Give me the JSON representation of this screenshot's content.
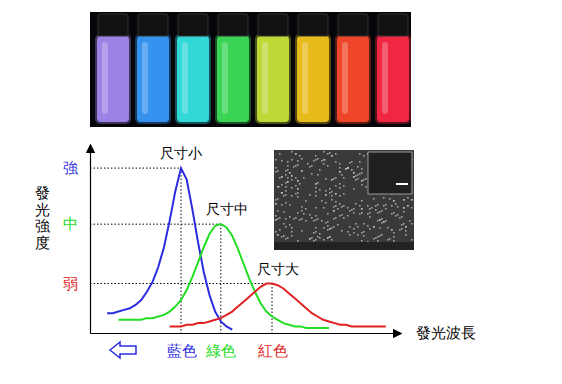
{
  "chart_data": {
    "type": "line",
    "x_label": "發光波長",
    "y_label": "發光強度",
    "x": [
      330,
      340,
      350,
      360,
      370,
      380,
      390,
      400,
      410,
      420,
      430,
      440,
      450,
      460,
      470,
      480,
      490,
      500,
      510,
      520,
      530,
      540,
      550,
      560,
      570,
      580,
      590,
      600,
      610,
      620,
      630,
      640,
      650,
      660,
      670,
      680,
      690,
      700,
      710,
      720,
      730,
      740,
      750,
      760,
      770,
      780,
      790,
      800,
      810,
      820
    ],
    "series": [
      {
        "name": "尺寸小",
        "color": "#2b2be0",
        "values": [
          0.12,
          0.12,
          0.13,
          0.14,
          0.15,
          0.17,
          0.2,
          0.25,
          0.31,
          0.4,
          0.52,
          0.68,
          0.86,
          1.0,
          0.93,
          0.75,
          0.55,
          0.37,
          0.23,
          0.13,
          0.07,
          0.04,
          0.02,
          null,
          null,
          null,
          null,
          null,
          null,
          null,
          null,
          null,
          null,
          null,
          null,
          null,
          null,
          null,
          null,
          null,
          null,
          null,
          null,
          null,
          null,
          null,
          null,
          null,
          null,
          null
        ]
      },
      {
        "name": "尺寸中",
        "color": "#22dd22",
        "values": [
          null,
          null,
          0.08,
          0.08,
          0.08,
          0.08,
          0.08,
          0.09,
          0.09,
          0.1,
          0.11,
          0.13,
          0.16,
          0.2,
          0.26,
          0.34,
          0.43,
          0.52,
          0.6,
          0.65,
          0.66,
          0.64,
          0.59,
          0.51,
          0.42,
          0.33,
          0.25,
          0.18,
          0.13,
          0.1,
          0.08,
          0.06,
          0.05,
          0.04,
          0.04,
          0.03,
          0.03,
          0.03,
          0.03,
          0.03,
          null,
          null,
          null,
          null,
          null,
          null,
          null,
          null,
          null,
          null
        ]
      },
      {
        "name": "尺寸大",
        "color": "#e02222",
        "values": [
          null,
          null,
          null,
          null,
          null,
          null,
          null,
          null,
          null,
          null,
          null,
          0.04,
          0.04,
          0.04,
          0.05,
          0.05,
          0.06,
          0.06,
          0.07,
          0.08,
          0.09,
          0.11,
          0.13,
          0.16,
          0.19,
          0.22,
          0.25,
          0.28,
          0.3,
          0.3,
          0.29,
          0.27,
          0.24,
          0.21,
          0.18,
          0.15,
          0.12,
          0.1,
          0.08,
          0.07,
          0.06,
          0.05,
          0.05,
          0.04,
          0.04,
          0.04,
          0.04,
          0.04,
          0.04,
          0.04
        ]
      }
    ],
    "xlim": [
      300,
      845
    ],
    "ylim": [
      0,
      1.14
    ],
    "xticks": [
      {
        "value": 460,
        "label": "藍色"
      },
      {
        "value": 530,
        "label": "綠色"
      },
      {
        "value": 620,
        "label": "紅色"
      }
    ],
    "yticks": [
      {
        "value": 1,
        "label": "強"
      },
      {
        "value": 0.66,
        "label": "中"
      },
      {
        "value": 0.3,
        "label": "弱"
      }
    ],
    "grid": true
  }
}
